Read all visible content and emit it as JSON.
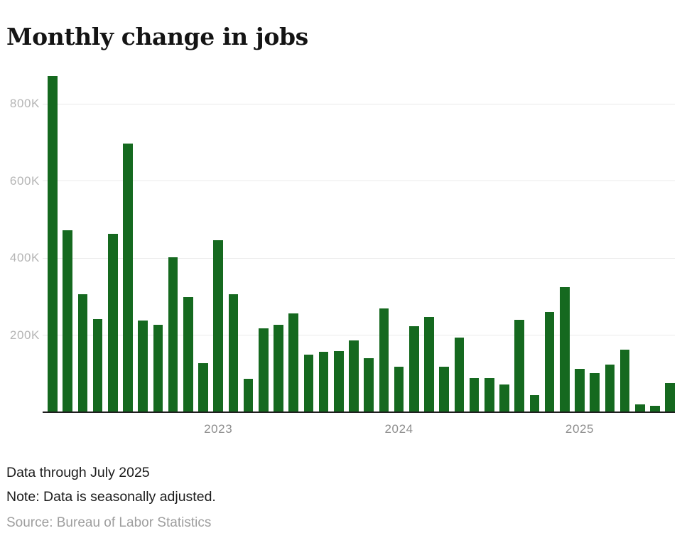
{
  "title": "Monthly change in jobs",
  "footer": {
    "line1": "Data through July 2025",
    "line2": "Note: Data is seasonally adjusted.",
    "source": "Source: Bureau of Labor Statistics"
  },
  "colors": {
    "bar": "#15691f",
    "grid": "#eaeaea",
    "axis_line": "#1f1f1f",
    "ytick_text": "#b5b5b5",
    "xtick_text": "#8d8d8d",
    "title_text": "#141414",
    "note_text": "#1c1c1c",
    "source_text": "#9e9e9e",
    "background": "#ffffff"
  },
  "chart_data": {
    "type": "bar",
    "title": "Monthly change in jobs",
    "unit": "jobs (thousands)",
    "x": [
      "Feb 2022",
      "Mar 2022",
      "Apr 2022",
      "May 2022",
      "Jun 2022",
      "Jul 2022",
      "Aug 2022",
      "Sep 2022",
      "Oct 2022",
      "Nov 2022",
      "Dec 2022",
      "Jan 2023",
      "Feb 2023",
      "Mar 2023",
      "Apr 2023",
      "May 2023",
      "Jun 2023",
      "Jul 2023",
      "Aug 2023",
      "Sep 2023",
      "Oct 2023",
      "Nov 2023",
      "Dec 2023",
      "Jan 2024",
      "Feb 2024",
      "Mar 2024",
      "Apr 2024",
      "May 2024",
      "Jun 2024",
      "Jul 2024",
      "Aug 2024",
      "Sep 2024",
      "Oct 2024",
      "Nov 2024",
      "Dec 2024",
      "Jan 2025",
      "Feb 2025",
      "Mar 2025",
      "Apr 2025",
      "May 2025",
      "Jun 2025",
      "Jul 2025"
    ],
    "values": [
      870,
      470,
      305,
      240,
      460,
      695,
      236,
      225,
      400,
      297,
      126,
      444,
      305,
      84,
      215,
      225,
      254,
      147,
      155,
      156,
      184,
      139,
      268,
      117,
      221,
      245,
      116,
      192,
      86,
      86,
      70,
      238,
      42,
      258,
      322,
      111,
      100,
      122,
      160,
      19,
      14,
      73
    ],
    "yticks": [
      {
        "label": "200K",
        "value": 200
      },
      {
        "label": "400K",
        "value": 400
      },
      {
        "label": "600K",
        "value": 600
      },
      {
        "label": "800K",
        "value": 800
      }
    ],
    "xticks": [
      {
        "label": "2023",
        "month": "Jan 2023"
      },
      {
        "label": "2024",
        "month": "Jan 2024"
      },
      {
        "label": "2025",
        "month": "Jan 2025"
      }
    ],
    "ylim": [
      0,
      900
    ],
    "grid": true,
    "legend": false
  }
}
